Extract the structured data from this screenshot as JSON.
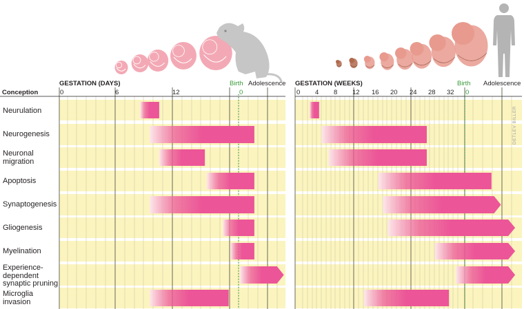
{
  "credit": "DETLEV BILLER",
  "row_header": "Conception",
  "colors": {
    "row_band": "#fbf4bf",
    "bar": "#ec5598",
    "bar_fade": "#fde7ef",
    "grid": "#c9c39a",
    "birth_line": "#3a9a3a",
    "embryo": "#f3a9b5",
    "mouse": "#c6c6c6",
    "fetus": "#e89a8e",
    "human": "#b4b4b4"
  },
  "icons": [
    "mouse-embryo-icon",
    "mouse-icon",
    "human-fetus-icon",
    "human-silhouette-icon"
  ],
  "processes": [
    "Neurulation",
    "Neurogenesis",
    "Neuronal\nmigration",
    "Apoptosis",
    "Synaptogenesis",
    "Gliogenesis",
    "Myelination",
    "Experience-\ndependent\nsynaptic pruning",
    "Microglia\ninvasion"
  ],
  "panels": [
    {
      "id": "mouse",
      "axis_title": "GESTATION (DAYS)",
      "ticks": [
        "0",
        "6",
        "12"
      ],
      "birth_label": "Birth",
      "birth_tick": "0",
      "post_label": "Adolescence",
      "bars": [
        {
          "process": "Neurulation",
          "start": 8.5,
          "end": 10.5,
          "arrow": false
        },
        {
          "process": "Neurogenesis",
          "start": 9.5,
          "end": 20.5,
          "arrow": false
        },
        {
          "process": "Neuronal\nmigration",
          "start": 10.5,
          "end": 15.3,
          "arrow": false
        },
        {
          "process": "Apoptosis",
          "start": 15.5,
          "end": 20.5,
          "arrow": false
        },
        {
          "process": "Synaptogenesis",
          "start": 9.5,
          "end": 20.5,
          "arrow": false
        },
        {
          "process": "Gliogenesis",
          "start": 17.2,
          "end": 20.5,
          "arrow": false
        },
        {
          "process": "Myelination",
          "start": 18.0,
          "end": 20.5,
          "arrow": false
        },
        {
          "process": "Experience-\ndependent\nsynaptic pruning",
          "start": 19.0,
          "end": 23.6,
          "arrow": true
        },
        {
          "process": "Microglia\ninvasion",
          "start": 9.5,
          "end": 17.8,
          "arrow": false
        }
      ]
    },
    {
      "id": "human",
      "axis_title": "GESTATION (WEEKS)",
      "ticks": [
        "0",
        "4",
        "8",
        "12",
        "16",
        "20",
        "24",
        "28",
        "32"
      ],
      "birth_label": "Birth",
      "birth_tick": "0",
      "post_label": "Adolescence",
      "bars": [
        {
          "process": "Neurulation",
          "start": 2.5,
          "end": 4.5,
          "arrow": false
        },
        {
          "process": "Neurogenesis",
          "start": 5.0,
          "end": 27.3,
          "arrow": false
        },
        {
          "process": "Neuronal\nmigration",
          "start": 6.5,
          "end": 27.3,
          "arrow": false
        },
        {
          "process": "Apoptosis",
          "start": 17.0,
          "end": 41.0,
          "arrow": false
        },
        {
          "process": "Synaptogenesis",
          "start": 18.0,
          "end": 43.0,
          "arrow": true
        },
        {
          "process": "Gliogenesis",
          "start": 19.0,
          "end": 46.0,
          "arrow": true
        },
        {
          "process": "Myelination",
          "start": 29.0,
          "end": 46.0,
          "arrow": true
        },
        {
          "process": "Experience-\ndependent\nsynaptic pruning",
          "start": 33.5,
          "end": 46.0,
          "arrow": true
        },
        {
          "process": "Microglia\ninvasion",
          "start": 14.0,
          "end": 32.0,
          "arrow": false
        }
      ]
    }
  ]
}
